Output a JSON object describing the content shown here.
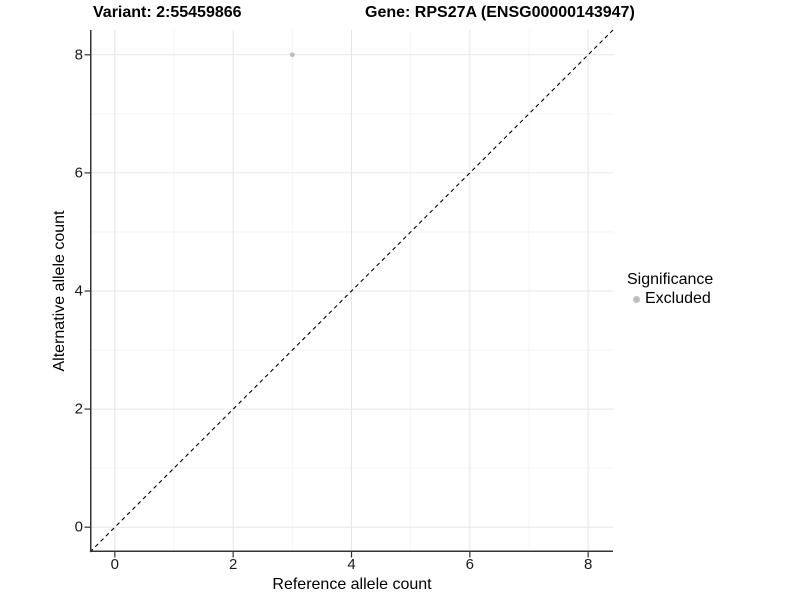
{
  "titles": {
    "left": "Variant: 2:55459866",
    "right": "Gene: RPS27A (ENSG00000143947)"
  },
  "chart_data": {
    "type": "scatter",
    "title": "Variant: 2:55459866    Gene: RPS27A (ENSG00000143947)",
    "xlabel": "Reference allele count",
    "ylabel": "Alternative allele count",
    "xlim": [
      -0.42,
      8.42
    ],
    "ylim": [
      -0.42,
      8.42
    ],
    "x_major_ticks": [
      0,
      2,
      4,
      6,
      8
    ],
    "x_minor_ticks": [
      1,
      3,
      5,
      7
    ],
    "y_major_ticks": [
      0,
      2,
      4,
      6,
      8
    ],
    "y_minor_ticks": [
      1,
      3,
      5,
      7
    ],
    "grid": true,
    "series": [
      {
        "name": "Excluded",
        "color": "#BEBEBE",
        "points": [
          {
            "x": 3,
            "y": 8
          }
        ]
      }
    ],
    "reference_line": {
      "type": "identity",
      "label": "y = x",
      "style": "dashed",
      "color": "#000000"
    },
    "legend": {
      "title": "Significance",
      "position": "right",
      "items": [
        {
          "label": "Excluded",
          "color": "#BEBEBE"
        }
      ]
    }
  },
  "style_colors": {
    "axis_line": "#333333",
    "tick_mark": "#333333",
    "tick_label": "#1a1a1a",
    "grid_major": "#e6e6e6",
    "grid_minor": "#f2f2f2",
    "background": "#ffffff"
  }
}
